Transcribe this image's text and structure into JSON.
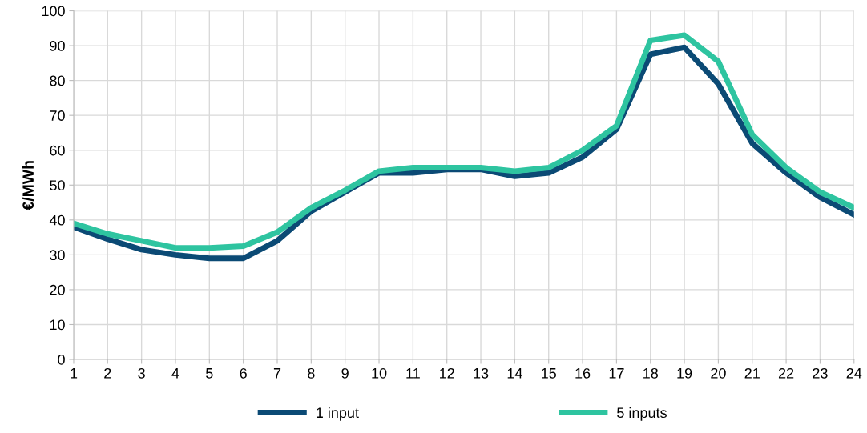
{
  "chart_data": {
    "type": "line",
    "ylabel": "€/MWh",
    "x": [
      1,
      2,
      3,
      4,
      5,
      6,
      7,
      8,
      9,
      10,
      11,
      12,
      13,
      14,
      15,
      16,
      17,
      18,
      19,
      20,
      21,
      22,
      23,
      24
    ],
    "xlim": [
      1,
      24
    ],
    "xticks": [
      1,
      2,
      3,
      4,
      5,
      6,
      7,
      8,
      9,
      10,
      11,
      12,
      13,
      14,
      15,
      16,
      17,
      18,
      19,
      20,
      21,
      22,
      23,
      24
    ],
    "ylim": [
      0,
      100
    ],
    "yticks": [
      0,
      10,
      20,
      30,
      40,
      50,
      60,
      70,
      80,
      90,
      100
    ],
    "grid": true,
    "legend": "bottom",
    "marker": "none",
    "line_style": "solid",
    "series": [
      {
        "name": "1 input",
        "color": "#0b4a75",
        "values": [
          38,
          34.5,
          31.5,
          30,
          29,
          29,
          34,
          42.5,
          48,
          53.5,
          53.5,
          54.5,
          54.5,
          52.5,
          53.5,
          58,
          66,
          87.5,
          89.5,
          79,
          62,
          53.5,
          46.5,
          41.5
        ]
      },
      {
        "name": "5 inputs",
        "color": "#2ec4a0",
        "values": [
          39,
          36,
          34,
          32,
          32,
          32.5,
          36.5,
          43.5,
          48.5,
          54,
          55,
          55,
          55,
          54,
          55,
          60,
          67,
          91.5,
          93,
          85.5,
          64.5,
          55,
          48,
          43.5
        ]
      }
    ]
  }
}
